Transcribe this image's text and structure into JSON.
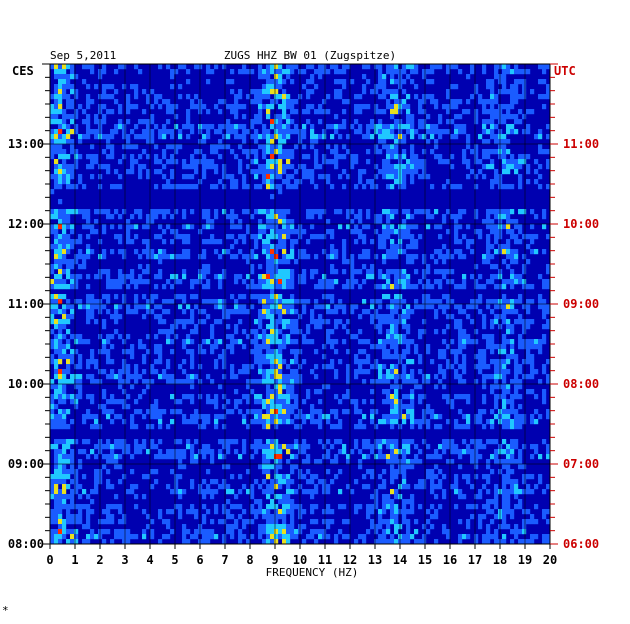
{
  "header": {
    "date": "Sep 5,2011",
    "station": "ZUGS HHZ BW 01 (Zugspitze)"
  },
  "mark": "*",
  "chart_data": {
    "type": "heatmap",
    "title": "ZUGS HHZ BW 01 (Zugspitze)",
    "subtitle": "Sep 5,2011",
    "xlabel": "FREQUENCY (HZ)",
    "xlim": [
      0,
      20
    ],
    "x_ticks": [
      "0",
      "1",
      "2",
      "3",
      "4",
      "5",
      "6",
      "7",
      "8",
      "9",
      "10",
      "11",
      "12",
      "13",
      "14",
      "15",
      "16",
      "17",
      "18",
      "19",
      "20"
    ],
    "y_left_label": "CES",
    "y_right_label": "UTC",
    "y_left_ticks": [
      "08:00",
      "09:00",
      "10:00",
      "11:00",
      "12:00",
      "13:00"
    ],
    "y_right_ticks": [
      "06:00",
      "07:00",
      "08:00",
      "09:00",
      "10:00",
      "11:00"
    ],
    "time_range_hours_ces": [
      8.0,
      14.0
    ],
    "colors": {
      "low": "#0000b0",
      "mid": "#1a5cff",
      "cyan": "#20c8ff",
      "high": "#e8e020",
      "peak": "#ff3000",
      "utc": "#cc0000"
    },
    "hotspots": [
      {
        "freq": 0.4,
        "strength": 0.6
      },
      {
        "freq": 9.0,
        "strength": 0.7
      },
      {
        "freq": 13.8,
        "strength": 0.45
      },
      {
        "freq": 18.2,
        "strength": 0.35
      }
    ],
    "quiet_bands_ces": [
      {
        "from": 12.2,
        "to": 12.45
      },
      {
        "from": 11.1,
        "to": 11.2
      },
      {
        "from": 9.3,
        "to": 9.45
      }
    ],
    "grid": true
  }
}
